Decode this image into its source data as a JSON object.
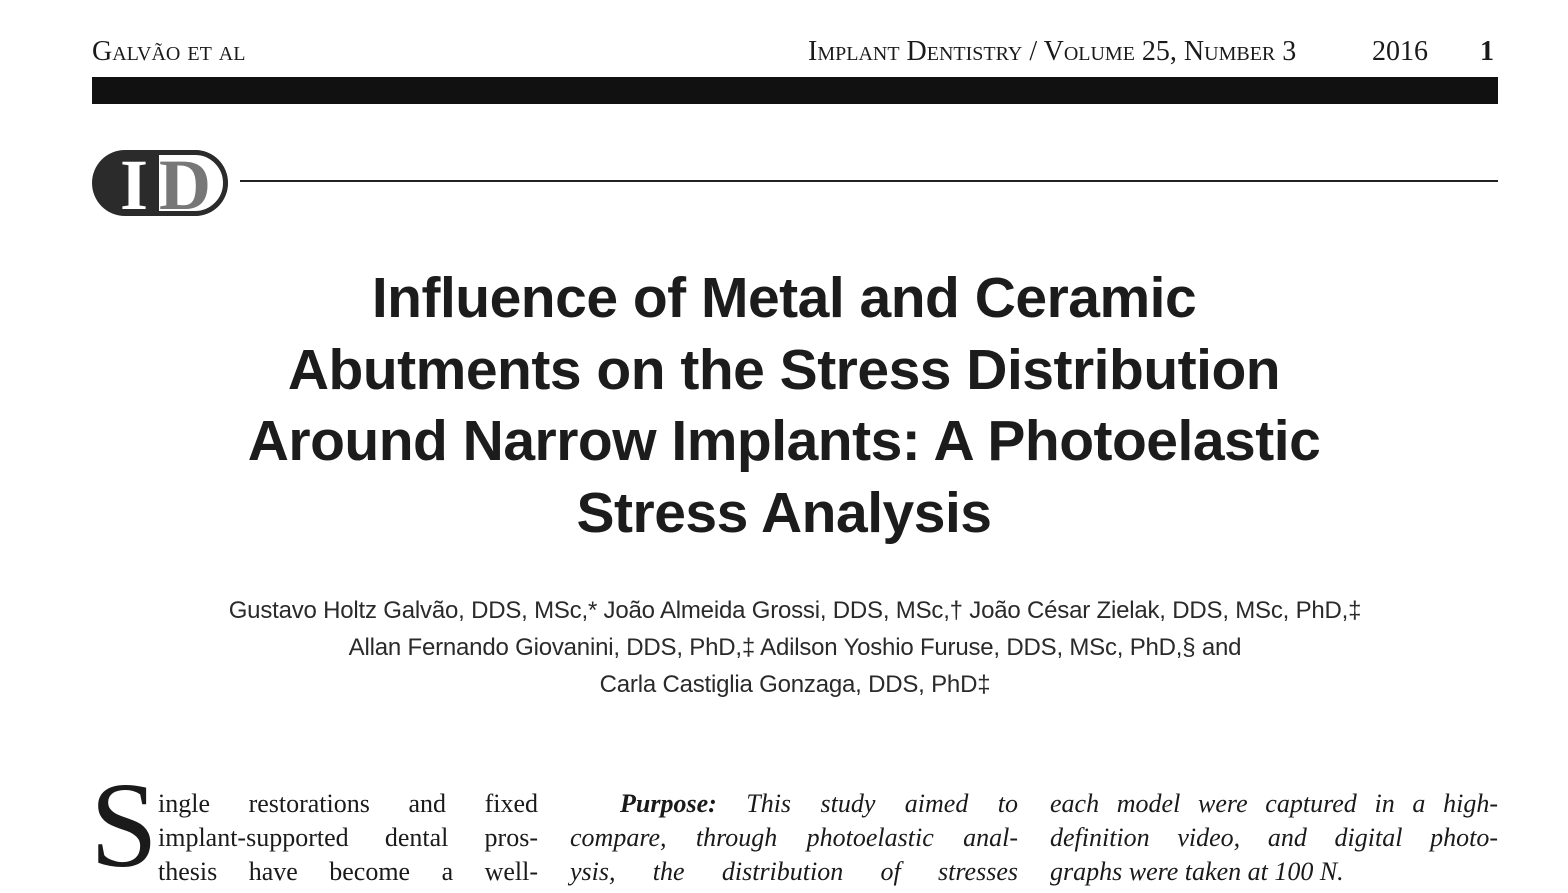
{
  "header": {
    "author": "Galvão et al",
    "journal": "Implant Dentistry / Volume 25, Number 3",
    "year": "2016",
    "page": "1"
  },
  "logo": {
    "letters": [
      "I",
      "D"
    ]
  },
  "title": {
    "lines": [
      "Influence of Metal and Ceramic",
      "Abutments on the Stress Distribution",
      "Around Narrow Implants: A Photoelastic",
      "Stress Analysis"
    ]
  },
  "authors": {
    "lines": [
      "Gustavo Holtz Galvão, DDS, MSc,* João Almeida Grossi, DDS, MSc,† João César Zielak, DDS, MSc, PhD,‡",
      "Allan Fernando Giovanini, DDS, PhD,‡ Adilson Yoshio Furuse, DDS, MSc, PhD,§ and",
      "Carla Castiglia Gonzaga, DDS, PhD‡"
    ]
  },
  "body": {
    "drop_cap": "S",
    "lines": [
      "ingle restorations and fixed",
      "implant-supported dental pros-",
      "thesis have become a well-"
    ]
  },
  "abstract": {
    "label": "Purpose:",
    "lines": [
      "This study aimed to",
      "compare, through photoelastic anal-",
      "ysis, the distribution of stresses"
    ],
    "column2_lines": [
      "each model were captured in a high-",
      "definition video, and digital photo-",
      "graphs were taken at 100 N."
    ]
  }
}
